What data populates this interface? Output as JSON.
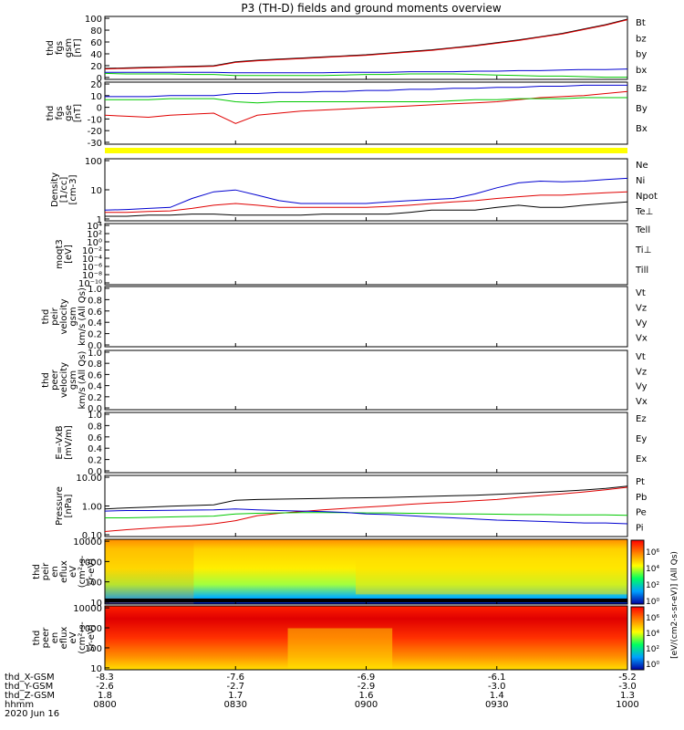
{
  "title": "P3 (TH-D) fields and ground moments overview",
  "colors": {
    "black": "#000000",
    "red": "#e00000",
    "green": "#00c800",
    "blue": "#0000d0",
    "yellow": "#ffff00"
  },
  "chart_data": {
    "type": "line",
    "x_time_labels": [
      "0800",
      "0830",
      "0900",
      "0930",
      "1000"
    ],
    "x_time_range": [
      "08:00",
      "10:00"
    ],
    "date": "2020 Jun 16",
    "ephemeris": {
      "labels": [
        "thd_X-GSM",
        "thd_Y-GSM",
        "thd_Z-GSM",
        "hhmm"
      ],
      "rows": [
        [
          "-8.3",
          "-7.6",
          "-6.9",
          "-6.1",
          "-5.2"
        ],
        [
          "-2.6",
          "-2.7",
          "-2.9",
          "-3.0",
          "-3.0"
        ],
        [
          "1.8",
          "1.7",
          "1.6",
          "1.4",
          "1.3"
        ]
      ]
    },
    "panels": [
      {
        "id": "fgs_gsm",
        "ylabel": [
          "thd",
          "fgs",
          "gsm",
          "[nT]"
        ],
        "yticks": [
          "100",
          "80",
          "60",
          "40",
          "20",
          "0"
        ],
        "ylim": [
          -10,
          105
        ],
        "legend": [
          {
            "name": "Bt",
            "color": "black"
          },
          {
            "name": "bz",
            "color": "red"
          },
          {
            "name": "by",
            "color": "green"
          },
          {
            "name": "bx",
            "color": "blue"
          }
        ],
        "series": [
          {
            "name": "Bt",
            "color": "black",
            "values": [
              10,
              11,
              12,
              13,
              14,
              15,
              22,
              25,
              27,
              29,
              31,
              33,
              35,
              38,
              41,
              44,
              48,
              52,
              57,
              62,
              68,
              74,
              82,
              90,
              100
            ]
          },
          {
            "name": "bz",
            "color": "red",
            "values": [
              9,
              10,
              11,
              12,
              13,
              14,
              21,
              24,
              26,
              28,
              30,
              32,
              34,
              37,
              40,
              43,
              47,
              51,
              56,
              61,
              67,
              73,
              81,
              89,
              99
            ]
          },
          {
            "name": "by",
            "color": "green",
            "values": [
              1,
              0,
              0,
              0,
              -1,
              -1,
              -3,
              -3,
              -3,
              -3,
              -3,
              -2,
              -1,
              -1,
              0,
              0,
              0,
              -1,
              -2,
              -3,
              -4,
              -4,
              -5,
              -6,
              -6
            ]
          },
          {
            "name": "bx",
            "color": "blue",
            "values": [
              3,
              3,
              3,
              3,
              3,
              3,
              2,
              2,
              2,
              2,
              2,
              3,
              3,
              3,
              4,
              4,
              4,
              5,
              5,
              6,
              6,
              7,
              8,
              8,
              9
            ]
          }
        ]
      },
      {
        "id": "fgs_gse",
        "ylabel": [
          "thd",
          "fgs",
          "gse",
          "[nT]"
        ],
        "yticks": [
          "20",
          "10",
          "0",
          "-10",
          "-20",
          "-30"
        ],
        "ylim": [
          -38,
          22
        ],
        "legend": [
          {
            "name": "Bz",
            "color": "red"
          },
          {
            "name": "By",
            "color": "green"
          },
          {
            "name": "Bx",
            "color": "blue"
          }
        ],
        "series": [
          {
            "name": "Bz",
            "color": "red",
            "values": [
              -10,
              -11,
              -12,
              -10,
              -9,
              -8,
              -18,
              -10,
              -8,
              -6,
              -5,
              -4,
              -3,
              -2,
              -1,
              0,
              1,
              2,
              3,
              5,
              7,
              8,
              9,
              11,
              13
            ]
          },
          {
            "name": "By",
            "color": "green",
            "values": [
              5,
              5,
              5,
              6,
              6,
              6,
              3,
              2,
              3,
              3,
              3,
              3,
              3,
              3,
              3,
              3,
              4,
              5,
              5,
              6,
              6,
              6,
              7,
              7,
              7
            ]
          },
          {
            "name": "Bx",
            "color": "blue",
            "values": [
              8,
              8,
              8,
              9,
              9,
              9,
              11,
              11,
              12,
              12,
              13,
              13,
              14,
              14,
              15,
              15,
              16,
              16,
              17,
              17,
              18,
              18,
              19,
              19,
              19
            ]
          }
        ]
      },
      {
        "id": "density",
        "ylabel": [
          "Density",
          "[1/cc]",
          "[cm-3]"
        ],
        "yticks": [
          "100",
          "10",
          "1"
        ],
        "log": true,
        "ylim": [
          0.5,
          300
        ],
        "legend": [
          {
            "name": "Ne",
            "color": "red"
          },
          {
            "name": "Ni",
            "color": "black"
          },
          {
            "name": "Npot",
            "color": "blue"
          },
          {
            "name": "Te⊥",
            "color": "red"
          }
        ],
        "series": [
          {
            "name": "Npot",
            "color": "blue",
            "values": [
              1.5,
              1.6,
              1.8,
              2.0,
              5,
              10,
              12,
              7,
              4,
              3,
              3,
              3,
              3,
              3.5,
              4,
              4.5,
              5,
              8,
              15,
              25,
              30,
              28,
              30,
              35,
              40
            ]
          },
          {
            "name": "Ne",
            "color": "red",
            "values": [
              1.2,
              1.2,
              1.3,
              1.4,
              1.8,
              2.5,
              3,
              2.5,
              2,
              2,
              2,
              2,
              2,
              2.2,
              2.5,
              3,
              3.5,
              4,
              5,
              6,
              7,
              7,
              8,
              9,
              10
            ]
          },
          {
            "name": "Ni",
            "color": "black",
            "values": [
              0.8,
              0.8,
              0.9,
              0.9,
              1,
              1,
              0.9,
              0.9,
              0.9,
              0.9,
              1,
              1,
              1,
              1,
              1.2,
              1.5,
              1.5,
              1.5,
              2,
              2.5,
              2,
              2,
              2.5,
              3,
              3.5
            ]
          }
        ]
      },
      {
        "id": "moms",
        "ylabel": [
          "moqt3",
          "[eV]"
        ],
        "yticks": [
          "10⁴",
          "10²",
          "10⁰",
          "10⁻²",
          "10⁻⁴",
          "10⁻⁶",
          "10⁻⁸",
          "10⁻¹⁰"
        ],
        "log": true,
        "legend": [
          {
            "name": "Tell",
            "color": "black"
          },
          {
            "name": "Ti⊥",
            "color": "red"
          },
          {
            "name": "Till",
            "color": "green"
          }
        ]
      },
      {
        "id": "vel_i",
        "ylabel": [
          "thd",
          "peir",
          "velocity",
          "gsm",
          "km/s (All Qs)"
        ],
        "yticks": [
          "1.0",
          "0.8",
          "0.6",
          "0.4",
          "0.2",
          "0.0"
        ],
        "ylim": [
          0,
          1
        ],
        "legend": [
          {
            "name": "Vt",
            "color": "black"
          },
          {
            "name": "Vz",
            "color": "red"
          },
          {
            "name": "Vy",
            "color": "green"
          },
          {
            "name": "Vx",
            "color": "blue"
          }
        ]
      },
      {
        "id": "vel_e",
        "ylabel": [
          "thd",
          "peer",
          "velocity",
          "gsm",
          "km/s (All Qs)"
        ],
        "yticks": [
          "1.0",
          "0.8",
          "0.6",
          "0.4",
          "0.2",
          "0.0"
        ],
        "ylim": [
          0,
          1
        ],
        "legend": [
          {
            "name": "Vt",
            "color": "black"
          },
          {
            "name": "Vz",
            "color": "red"
          },
          {
            "name": "Vy",
            "color": "green"
          },
          {
            "name": "Vx",
            "color": "blue"
          }
        ]
      },
      {
        "id": "efield",
        "ylabel": [
          "E=-VxB",
          "[mV/m]"
        ],
        "yticks": [
          "1.0",
          "0.8",
          "0.6",
          "0.4",
          "0.2",
          "0.0"
        ],
        "ylim": [
          0,
          1
        ],
        "legend": [
          {
            "name": "Ez",
            "color": "red"
          },
          {
            "name": "Ey",
            "color": "green"
          },
          {
            "name": "Ex",
            "color": "blue"
          }
        ]
      },
      {
        "id": "pressure",
        "ylabel": [
          "Pressure",
          "[nPa]"
        ],
        "yticks": [
          "10.00",
          "1.00",
          "0.10"
        ],
        "log": true,
        "ylim": [
          0.03,
          15
        ],
        "legend": [
          {
            "name": "Pt",
            "color": "black"
          },
          {
            "name": "Pb",
            "color": "red"
          },
          {
            "name": "Pe",
            "color": "green"
          },
          {
            "name": "Pi",
            "color": "blue"
          }
        ],
        "series": [
          {
            "name": "Pt",
            "color": "black",
            "values": [
              0.5,
              0.55,
              0.6,
              0.65,
              0.7,
              0.75,
              1.2,
              1.3,
              1.35,
              1.4,
              1.45,
              1.5,
              1.55,
              1.6,
              1.7,
              1.8,
              1.9,
              2.0,
              2.2,
              2.4,
              2.7,
              3.0,
              3.4,
              4.0,
              5.0
            ]
          },
          {
            "name": "Pb",
            "color": "red",
            "values": [
              0.05,
              0.06,
              0.07,
              0.08,
              0.09,
              0.11,
              0.15,
              0.25,
              0.32,
              0.38,
              0.45,
              0.52,
              0.6,
              0.68,
              0.8,
              0.9,
              1.0,
              1.15,
              1.3,
              1.6,
              1.9,
              2.3,
              2.8,
              3.5,
              4.5
            ]
          },
          {
            "name": "Pe",
            "color": "green",
            "values": [
              0.2,
              0.2,
              0.21,
              0.22,
              0.23,
              0.24,
              0.3,
              0.32,
              0.33,
              0.34,
              0.34,
              0.34,
              0.33,
              0.33,
              0.32,
              0.31,
              0.3,
              0.3,
              0.29,
              0.28,
              0.28,
              0.27,
              0.27,
              0.27,
              0.26
            ]
          },
          {
            "name": "Pi",
            "color": "blue",
            "values": [
              0.4,
              0.42,
              0.42,
              0.43,
              0.44,
              0.45,
              0.5,
              0.45,
              0.42,
              0.4,
              0.38,
              0.35,
              0.3,
              0.28,
              0.25,
              0.22,
              0.2,
              0.18,
              0.16,
              0.15,
              0.14,
              0.13,
              0.12,
              0.12,
              0.11
            ]
          }
        ]
      },
      {
        "id": "peir_en",
        "type": "heatmap",
        "ylabel": [
          "thd",
          "peir",
          "en",
          "eflux",
          "eV",
          "(cm²-s-",
          "sr-eV)"
        ],
        "yticks": [
          "10000",
          "1000",
          "100",
          "10"
        ]
      },
      {
        "id": "peer_en",
        "type": "heatmap",
        "ylabel": [
          "thd",
          "peer",
          "en",
          "eflux",
          "eV",
          "(cm²-s-",
          "sr-eV)"
        ],
        "yticks": [
          "10000",
          "1000",
          "100",
          "10"
        ]
      }
    ],
    "colorbar": {
      "label": "[eV/(cm2-s-sr-eV)] (All Qs)",
      "ticks_top": [
        "10⁶",
        "10⁴",
        "10²",
        "10⁰"
      ],
      "ticks_bottom": [
        "10⁶",
        "10⁴",
        "10²",
        "10⁰"
      ]
    }
  }
}
